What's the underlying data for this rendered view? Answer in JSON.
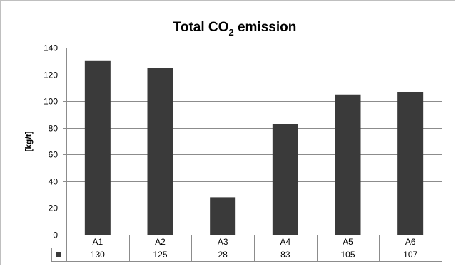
{
  "chart_data": {
    "type": "bar",
    "title": "Total CO₂ emission",
    "title_parts": {
      "pre": "Total CO",
      "sub": "2",
      "post": " emission"
    },
    "ylabel": "[kg/t]",
    "xlabel": "",
    "categories": [
      "A1",
      "A2",
      "A3",
      "A4",
      "A5",
      "A6"
    ],
    "values": [
      130,
      125,
      28,
      83,
      105,
      107
    ],
    "ylim": [
      0,
      140
    ],
    "yticks": [
      0,
      20,
      40,
      60,
      80,
      100,
      120,
      140
    ],
    "grid": true,
    "bar_color": "#3a3a3a",
    "data_table": true
  }
}
